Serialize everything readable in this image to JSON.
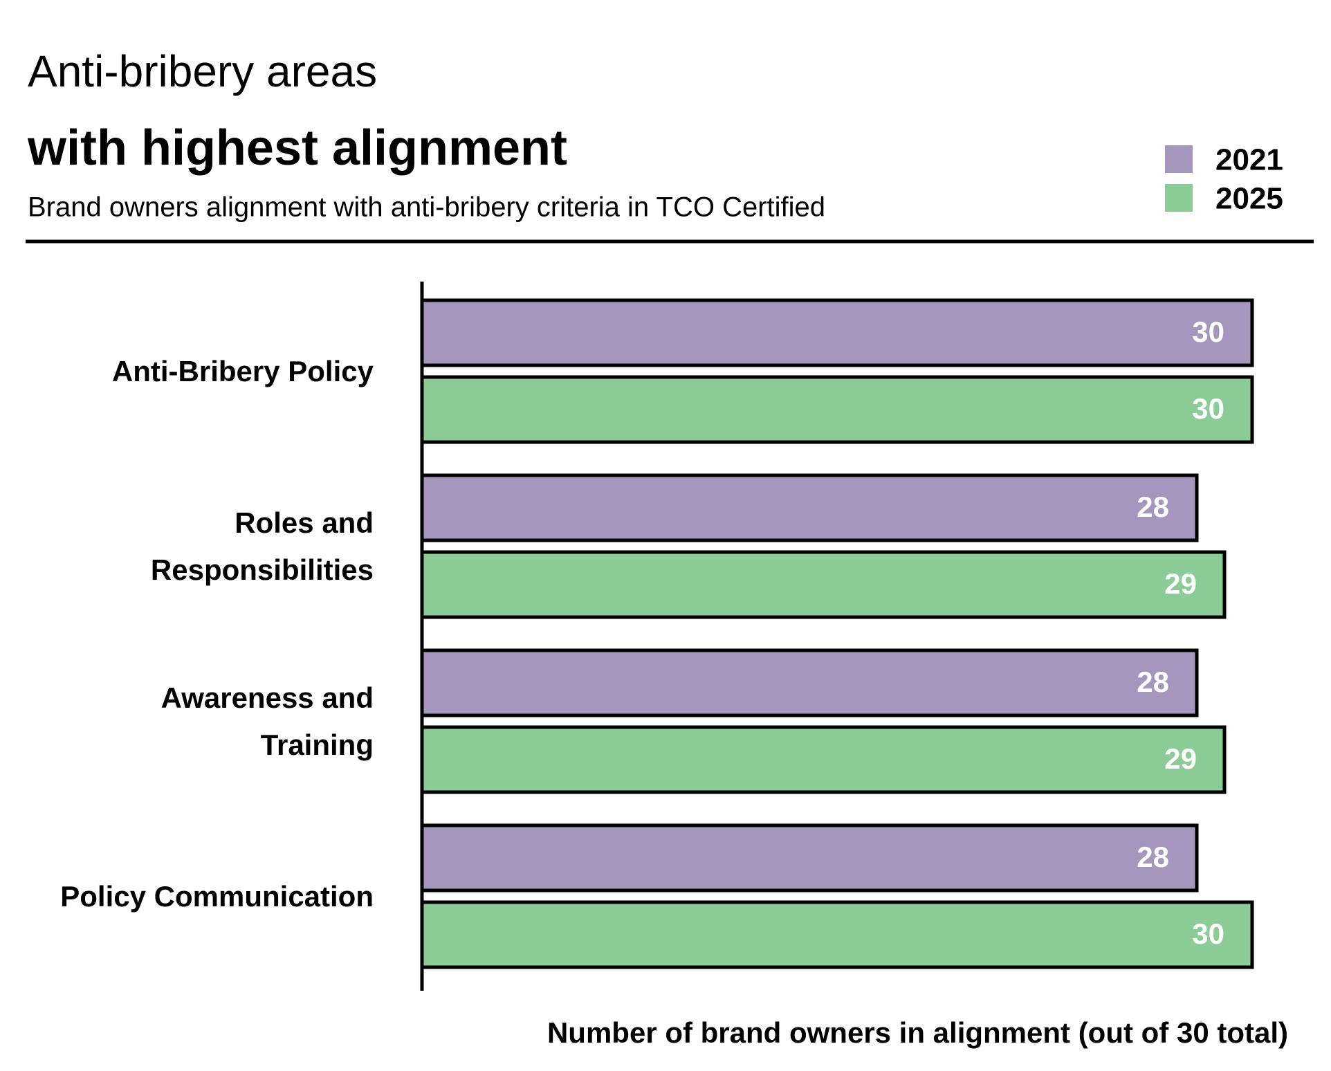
{
  "chart_data": {
    "type": "bar",
    "orientation": "horizontal",
    "title": "Anti-bribery areas",
    "title_bold": "with highest alignment",
    "subtitle": "Brand owners alignment with anti-bribery criteria in TCO Certified",
    "x_label": "Number of brand owners in alignment (out of 30 total)",
    "categories": [
      "Anti-Bribery Policy",
      "Roles and Responsibilities",
      "Awareness and Training",
      "Policy Communication"
    ],
    "series": [
      {
        "name": "2021",
        "color": "#a596bd",
        "values": [
          30,
          28,
          28,
          28
        ]
      },
      {
        "name": "2025",
        "color": "#8bcb96",
        "values": [
          30,
          29,
          29,
          30
        ]
      }
    ],
    "xlim": [
      0,
      30
    ],
    "legend": "top-right"
  }
}
